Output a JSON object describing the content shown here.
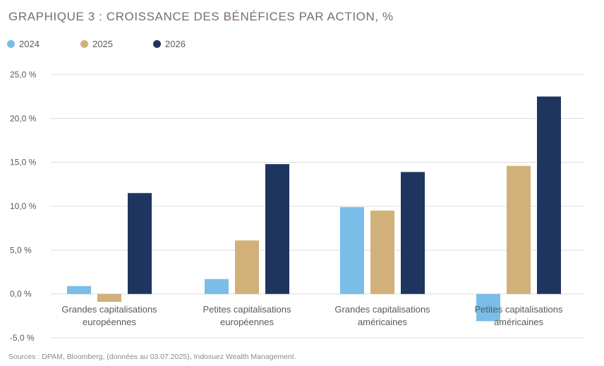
{
  "title": "GRAPHIQUE 3 : CROISSANCE DES BÉNÉFICES PAR ACTION, %",
  "source": "Sources : DPAM, Bloomberg, (données au 03.07.2025), Indosuez Wealth Management.",
  "colors": {
    "2024": "#79bde8",
    "2025": "#d2b07a",
    "2026": "#1e3560",
    "grid": "#dcdcdc",
    "text": "#595959"
  },
  "chart_data": {
    "type": "bar",
    "categories": [
      [
        "Grandes capitalisations",
        "européennes"
      ],
      [
        "Petites  capitalisations",
        "européennes"
      ],
      [
        "Grandes capitalisations",
        "américaines"
      ],
      [
        "Petites  capitalisations",
        "américaines"
      ]
    ],
    "series": [
      {
        "name": "2024",
        "values": [
          0.9,
          1.7,
          9.9,
          -3.1
        ]
      },
      {
        "name": "2025",
        "values": [
          -0.9,
          6.1,
          9.5,
          14.6
        ]
      },
      {
        "name": "2026",
        "values": [
          11.5,
          14.8,
          13.9,
          22.5
        ]
      }
    ],
    "title": "GRAPHIQUE 3 : CROISSANCE DES BÉNÉFICES PAR ACTION, %",
    "xlabel": "",
    "ylabel": "",
    "ylim": [
      -5,
      25
    ],
    "yticks": [
      -5,
      0,
      5,
      10,
      15,
      20,
      25
    ],
    "ytick_labels": [
      "-5,0 %",
      "0,0 %",
      "5,0 %",
      "10,0 %",
      "15,0 %",
      "20,0 %",
      "25,0 %"
    ],
    "grid": true,
    "legend_position": "top-left"
  }
}
